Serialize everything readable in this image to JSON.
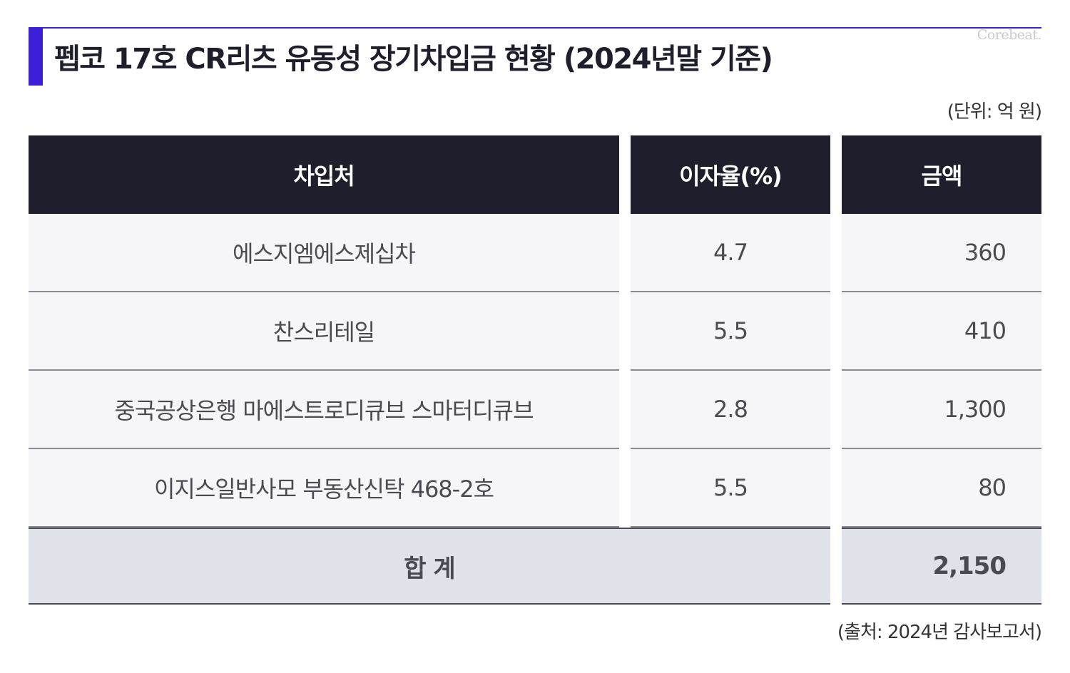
{
  "title": "펩코 17호 CR리츠 유동성 장기차입금 현황 (2024년말 기준)",
  "brand": "Corebeat.",
  "unit_note": "(단위: 억 원)",
  "source_note": "(출처: 2024년 감사보고서)",
  "colors": {
    "accent": "#3a1fd6",
    "header_bg": "#1e1e2c",
    "row_bg": "#f6f6f8",
    "total_bg": "#e0e2ea"
  },
  "chart_data": {
    "type": "table",
    "columns": [
      "차입처",
      "이자율(%)",
      "금액"
    ],
    "rows": [
      {
        "lender": "에스지엠에스제십차",
        "rate": "4.7",
        "amount": "360"
      },
      {
        "lender": "찬스리테일",
        "rate": "5.5",
        "amount": "410"
      },
      {
        "lender": "중국공상은행 마에스트로디큐브 스마터디큐브",
        "rate": "2.8",
        "amount": "1,300"
      },
      {
        "lender": "이지스일반사모 부동산신탁 468-2호",
        "rate": "5.5",
        "amount": "80"
      }
    ],
    "total": {
      "label": "합 계",
      "amount": "2,150"
    }
  }
}
